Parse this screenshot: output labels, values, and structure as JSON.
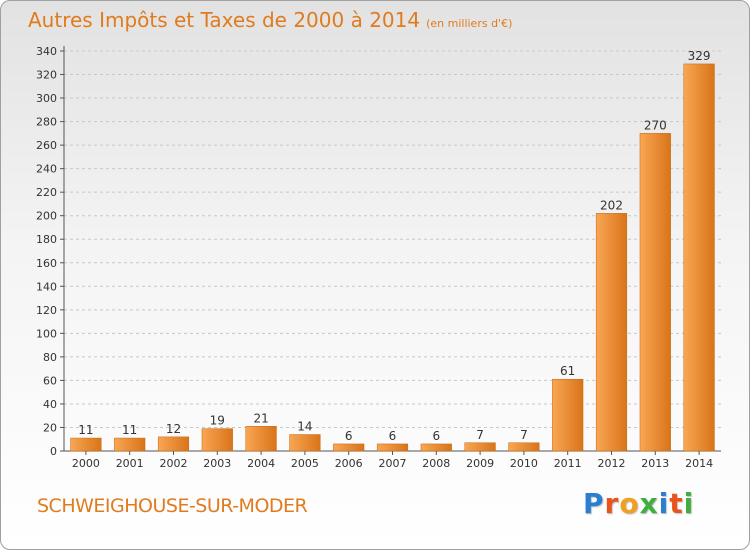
{
  "header": {
    "title": "Autres Impôts et Taxes de 2000 à 2014",
    "unit": "(en milliers d'€)"
  },
  "footer": {
    "commune": "SCHWEIGHOUSE-SUR-MODER",
    "logo": {
      "text": "Proxiti",
      "letter_colors": [
        "#2a7fd0",
        "#e8541c",
        "#f0a020",
        "#3fae3f",
        "#2a7fd0",
        "#e8541c",
        "#3fae3f"
      ]
    }
  },
  "colors": {
    "bar_light": "#f9a653",
    "bar_dark": "#d9741a",
    "accent": "#e07b1e",
    "grid": "#c8c8c8"
  },
  "chart_data": {
    "type": "bar",
    "title": "Autres Impôts et Taxes de 2000 à 2014",
    "subtitle": "(en milliers d'€)",
    "categories": [
      "2000",
      "2001",
      "2002",
      "2003",
      "2004",
      "2005",
      "2006",
      "2007",
      "2008",
      "2009",
      "2010",
      "2011",
      "2012",
      "2013",
      "2014"
    ],
    "values": [
      11,
      11,
      12,
      19,
      21,
      14,
      6,
      6,
      6,
      7,
      7,
      61,
      202,
      270,
      329
    ],
    "ylim": [
      0,
      340
    ],
    "yticks": [
      0,
      20,
      40,
      60,
      80,
      100,
      120,
      140,
      160,
      180,
      200,
      220,
      240,
      260,
      280,
      300,
      320,
      340
    ],
    "grid": "horizontal, dashed",
    "data_labels": true
  }
}
